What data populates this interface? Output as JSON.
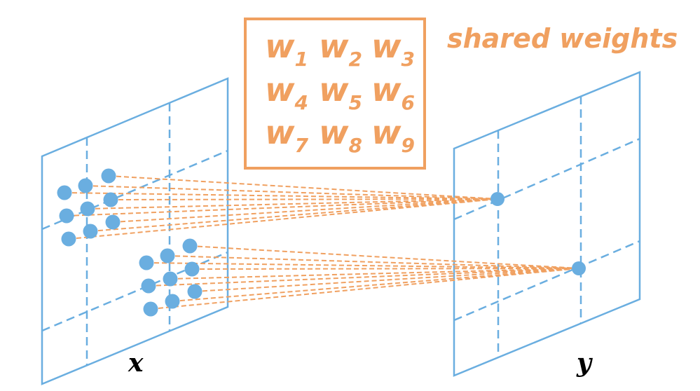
{
  "weights": {
    "caption": "shared weights",
    "rows": [
      [
        {
          "base": "w",
          "sub": "1"
        },
        {
          "base": "w",
          "sub": "2"
        },
        {
          "base": "w",
          "sub": "3"
        }
      ],
      [
        {
          "base": "w",
          "sub": "4"
        },
        {
          "base": "w",
          "sub": "5"
        },
        {
          "base": "w",
          "sub": "6"
        }
      ],
      [
        {
          "base": "w",
          "sub": "7"
        },
        {
          "base": "w",
          "sub": "8"
        },
        {
          "base": "w",
          "sub": "9"
        }
      ]
    ]
  },
  "input_plane": {
    "label": "x"
  },
  "output_plane": {
    "label": "y"
  },
  "colors": {
    "blue": "#6aaee0",
    "dot": "#6aaee0",
    "orange": "#f0a060"
  }
}
